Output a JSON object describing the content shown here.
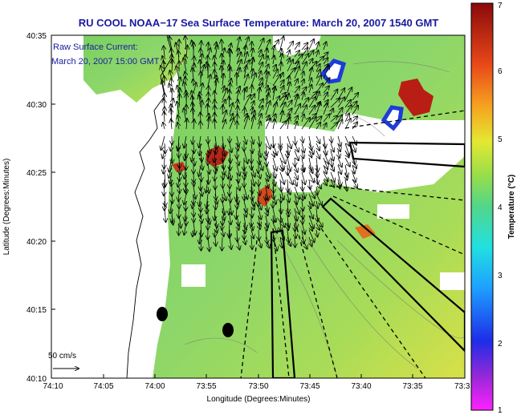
{
  "chart_data": {
    "type": "heatmap",
    "title": "RU COOL  NOAA−17  Sea Surface Temperature:  March 20, 2007 1540 GMT",
    "annotation": [
      "Raw Surface Current:",
      "March 20, 2007 15:00 GMT"
    ],
    "xlabel": "Longitude (Degrees:Minutes)",
    "ylabel": "Latitude (Degrees:Minutes)",
    "x_ticks": [
      "74:10",
      "74:05",
      "74:00",
      "73:55",
      "73:50",
      "73:45",
      "73:40",
      "73:35",
      "73:3"
    ],
    "y_ticks": [
      "40:35",
      "40:30",
      "40:25",
      "40:20",
      "40:15",
      "40:10"
    ],
    "xlim_deg": [
      -74.1667,
      -73.5
    ],
    "ylim_deg": [
      40.1667,
      40.5833
    ],
    "colorbar": {
      "label": "Temperature (°C)",
      "ticks": [
        "1",
        "2",
        "3",
        "4",
        "5",
        "6",
        "7"
      ],
      "range": [
        1,
        7
      ]
    },
    "scale_label": "50 cm/s",
    "grid": false
  },
  "colors": {
    "title": "#1a1aa0",
    "land": "#ffffff",
    "ocean_mid": "#8cd66a",
    "warm": "#c0281e",
    "cold": "#1e3cd8"
  }
}
